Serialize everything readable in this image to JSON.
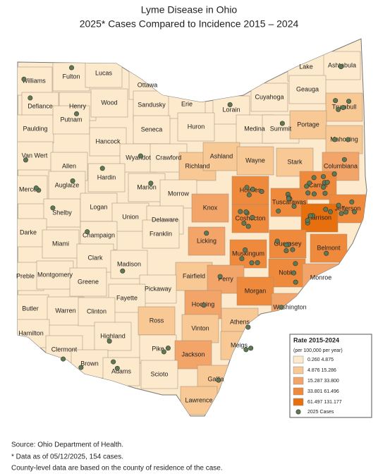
{
  "title": "Lyme Disease in Ohio",
  "subtitle": "2025* Cases Compared to Incidence 2015 – 2024",
  "counties": [
    {
      "name": "Williams",
      "color": "#fde9cc"
    },
    {
      "name": "Fulton",
      "color": "#fde9cc"
    },
    {
      "name": "Lucas",
      "color": "#fde9cc"
    },
    {
      "name": "Ottawa",
      "color": "#fde9cc"
    },
    {
      "name": "Lake",
      "color": "#fde9cc"
    },
    {
      "name": "Ashtabula",
      "color": "#fde9cc"
    },
    {
      "name": "Defiance",
      "color": "#fde9cc"
    },
    {
      "name": "Henry",
      "color": "#fde9cc"
    },
    {
      "name": "Wood",
      "color": "#fde9cc"
    },
    {
      "name": "Sandusky",
      "color": "#fde9cc"
    },
    {
      "name": "Erie",
      "color": "#fde9cc"
    },
    {
      "name": "Cuyahoga",
      "color": "#fde9cc"
    },
    {
      "name": "Geauga",
      "color": "#fde9cc"
    },
    {
      "name": "Trumbull",
      "color": "#f8c895"
    },
    {
      "name": "Lorain",
      "color": "#fde9cc"
    },
    {
      "name": "Paulding",
      "color": "#fde9cc"
    },
    {
      "name": "Putnam",
      "color": "#fde9cc"
    },
    {
      "name": "Hancock",
      "color": "#fde9cc"
    },
    {
      "name": "Seneca",
      "color": "#fde9cc"
    },
    {
      "name": "Huron",
      "color": "#fde9cc"
    },
    {
      "name": "Medina",
      "color": "#fde9cc"
    },
    {
      "name": "Summit",
      "color": "#fde9cc"
    },
    {
      "name": "Portage",
      "color": "#f8c895"
    },
    {
      "name": "Mahoning",
      "color": "#f8c895"
    },
    {
      "name": "Van Wert",
      "color": "#fde9cc"
    },
    {
      "name": "Allen",
      "color": "#fde9cc"
    },
    {
      "name": "Wyandot",
      "color": "#fde9cc"
    },
    {
      "name": "Crawford",
      "color": "#fde9cc"
    },
    {
      "name": "Richland",
      "color": "#f8c895"
    },
    {
      "name": "Ashland",
      "color": "#f8c895"
    },
    {
      "name": "Wayne",
      "color": "#f8c895"
    },
    {
      "name": "Stark",
      "color": "#f8c895"
    },
    {
      "name": "Columbiana",
      "color": "#f3a468"
    },
    {
      "name": "Mercer",
      "color": "#fde9cc"
    },
    {
      "name": "Auglaize",
      "color": "#fde9cc"
    },
    {
      "name": "Hardin",
      "color": "#fde9cc"
    },
    {
      "name": "Marion",
      "color": "#fde9cc"
    },
    {
      "name": "Morrow",
      "color": "#fde9cc"
    },
    {
      "name": "Holmes",
      "color": "#ef8a3c"
    },
    {
      "name": "Carroll",
      "color": "#ef8a3c"
    },
    {
      "name": "Knox",
      "color": "#f3a468"
    },
    {
      "name": "Tuscarawas",
      "color": "#ef8a3c"
    },
    {
      "name": "Jefferson",
      "color": "#ef8a3c"
    },
    {
      "name": "Shelby",
      "color": "#fde9cc"
    },
    {
      "name": "Logan",
      "color": "#fde9cc"
    },
    {
      "name": "Union",
      "color": "#fde9cc"
    },
    {
      "name": "Delaware",
      "color": "#fde9cc"
    },
    {
      "name": "Coshocton",
      "color": "#ef8a3c"
    },
    {
      "name": "Harrison",
      "color": "#e86f0e"
    },
    {
      "name": "Darke",
      "color": "#fde9cc"
    },
    {
      "name": "Champaign",
      "color": "#fde9cc"
    },
    {
      "name": "Licking",
      "color": "#f3a468"
    },
    {
      "name": "Miami",
      "color": "#fde9cc"
    },
    {
      "name": "Guernsey",
      "color": "#ef8a3c"
    },
    {
      "name": "Belmont",
      "color": "#ef8a3c"
    },
    {
      "name": "Franklin",
      "color": "#fde9cc"
    },
    {
      "name": "Muskingum",
      "color": "#ef8a3c"
    },
    {
      "name": "Clark",
      "color": "#fde9cc"
    },
    {
      "name": "Madison",
      "color": "#fde9cc"
    },
    {
      "name": "Preble",
      "color": "#fde9cc"
    },
    {
      "name": "Montgomery",
      "color": "#fde9cc"
    },
    {
      "name": "Greene",
      "color": "#fde9cc"
    },
    {
      "name": "Fairfield",
      "color": "#f8c895"
    },
    {
      "name": "Perry",
      "color": "#f3a468"
    },
    {
      "name": "Noble",
      "color": "#ef8a3c"
    },
    {
      "name": "Monroe",
      "color": "#f3a468"
    },
    {
      "name": "Pickaway",
      "color": "#fde9cc"
    },
    {
      "name": "Fayette",
      "color": "#fde9cc"
    },
    {
      "name": "Morgan",
      "color": "#ef8a3c"
    },
    {
      "name": "Butler",
      "color": "#fde9cc"
    },
    {
      "name": "Warren",
      "color": "#fde9cc"
    },
    {
      "name": "Clinton",
      "color": "#fde9cc"
    },
    {
      "name": "Hocking",
      "color": "#f3a468"
    },
    {
      "name": "Washington",
      "color": "#f3a468"
    },
    {
      "name": "Athens",
      "color": "#f8c895"
    },
    {
      "name": "Ross",
      "color": "#f8c895"
    },
    {
      "name": "Vinton",
      "color": "#f8c895"
    },
    {
      "name": "Hamilton",
      "color": "#fde9cc"
    },
    {
      "name": "Highland",
      "color": "#fde9cc"
    },
    {
      "name": "Clermont",
      "color": "#fde9cc"
    },
    {
      "name": "Meigs",
      "color": "#f8c895"
    },
    {
      "name": "Pike",
      "color": "#fde9cc"
    },
    {
      "name": "Jackson",
      "color": "#f3a468"
    },
    {
      "name": "Brown",
      "color": "#fde9cc"
    },
    {
      "name": "Adams",
      "color": "#fde9cc"
    },
    {
      "name": "Scioto",
      "color": "#fde9cc"
    },
    {
      "name": "Gallia",
      "color": "#f8c895"
    },
    {
      "name": "Lawrence",
      "color": "#f8c895"
    }
  ],
  "legend": {
    "title": "Rate 2015-2024",
    "subtitle": "(per 100,000 per year)",
    "classes": [
      {
        "label": "0.260   4.875",
        "color": "#fde9cc"
      },
      {
        "label": "4.876   15.286",
        "color": "#f8c895"
      },
      {
        "label": "15.287   33.800",
        "color": "#f3a468"
      },
      {
        "label": "33.801   61.496",
        "color": "#ef8a3c"
      },
      {
        "label": "61.497   131.177",
        "color": "#e86f0e"
      }
    ],
    "cases_label": "2025 Cases",
    "cases_color": "#5f7a52"
  },
  "footer": [
    "Source:  Ohio Department of Health.",
    "* Data as of 05/12/2025, 154 cases.",
    "County-level data are based on the county of residence of the case."
  ]
}
